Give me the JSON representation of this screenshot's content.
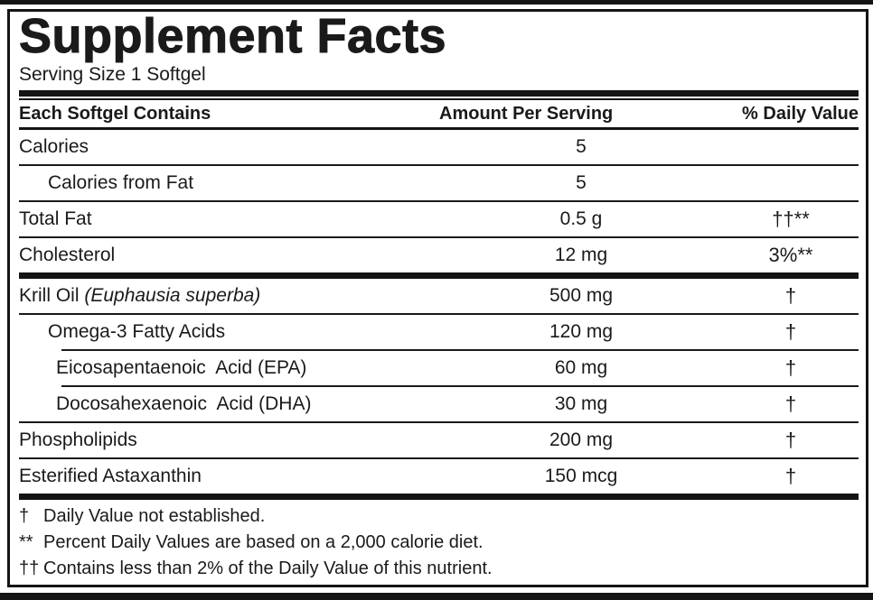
{
  "title": "Supplement Facts",
  "serving_size": "Serving Size 1 Softgel",
  "header": {
    "contains": "Each Softgel Contains",
    "amount": "Amount Per Serving",
    "daily_value": "% Daily Value"
  },
  "rows": [
    {
      "name": "Calories",
      "amount": "5",
      "dv": ""
    },
    {
      "name": "Calories from Fat",
      "amount": "5",
      "dv": ""
    },
    {
      "name": "Total Fat",
      "amount": "0.5 g",
      "dv": "††**"
    },
    {
      "name": "Cholesterol",
      "amount": "12 mg",
      "dv": "3%**"
    },
    {
      "name": "Krill Oil ",
      "name_italic": "(Euphausia superba)",
      "amount": "500 mg",
      "dv": "†"
    },
    {
      "name": "Omega-3 Fatty Acids",
      "amount": "120 mg",
      "dv": "†"
    },
    {
      "name": "Eicosapentaenoic  Acid (EPA)",
      "amount": "60 mg",
      "dv": "†"
    },
    {
      "name": "Docosahexaenoic  Acid (DHA)",
      "amount": "30 mg",
      "dv": "†"
    },
    {
      "name": "Phospholipids",
      "amount": "200 mg",
      "dv": "†"
    },
    {
      "name": "Esterified Astaxanthin",
      "amount": "150 mcg",
      "dv": "†"
    }
  ],
  "footnotes": [
    {
      "symbol": "†",
      "text": "Daily Value not established."
    },
    {
      "symbol": "**",
      "text": "Percent Daily Values are based on a 2,000 calorie diet."
    },
    {
      "symbol": "††",
      "text": "Contains less than 2% of the Daily Value of this nutrient."
    }
  ],
  "colors": {
    "text": "#1a1a1a",
    "background": "#ffffff"
  }
}
